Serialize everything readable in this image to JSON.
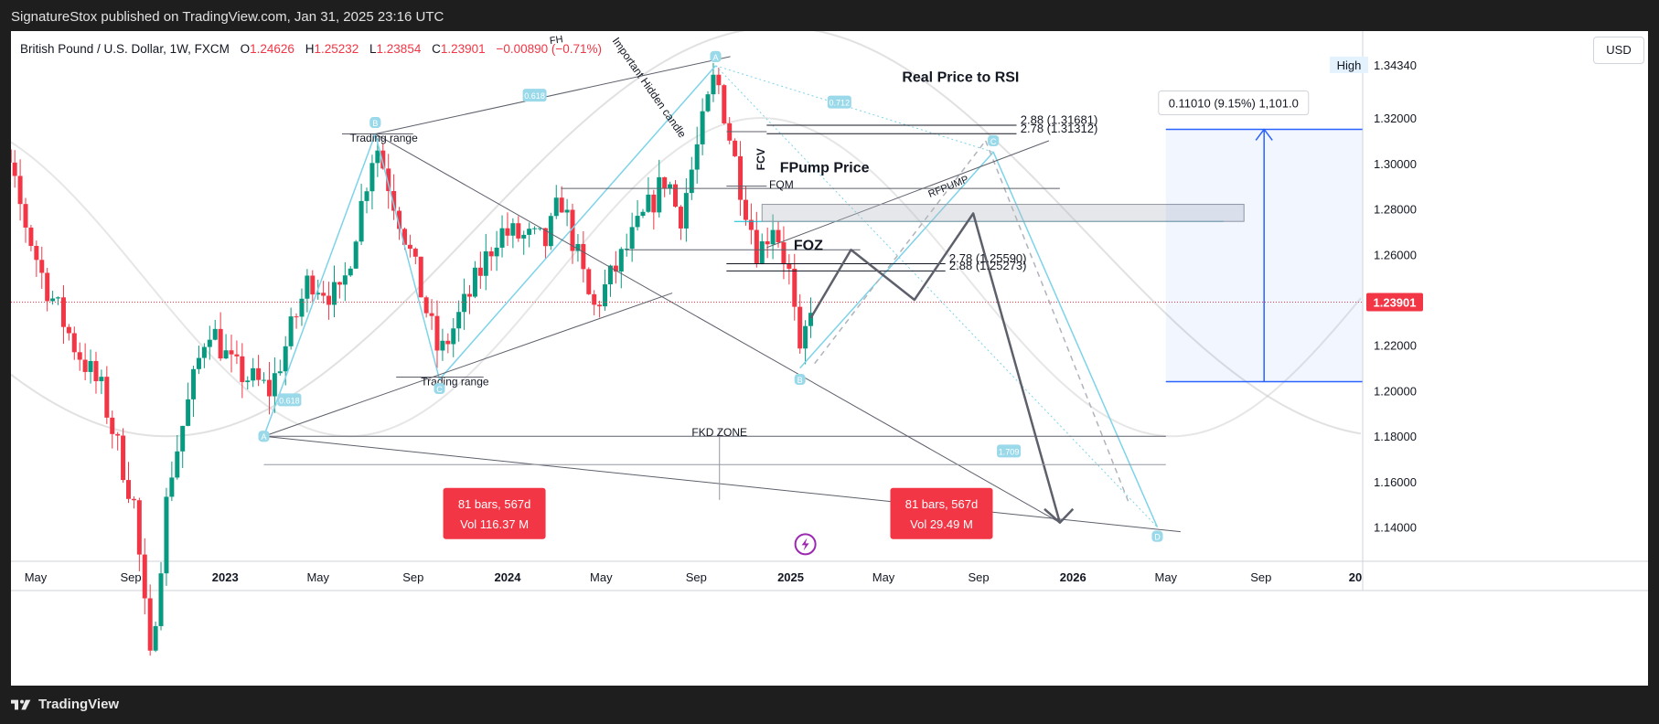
{
  "header": {
    "publisher_line": "SignatureStox published on TradingView.com, Jan 31, 2025 23:16 UTC"
  },
  "legend": {
    "symbol": "British Pound / U.S. Dollar, 1W, FXCM",
    "open_label": "O",
    "open": "1.24626",
    "high_label": "H",
    "high": "1.25232",
    "low_label": "L",
    "low": "1.23854",
    "close_label": "C",
    "close": "1.23901",
    "change": "−0.00890 (−0.71%)"
  },
  "currency_button": "USD",
  "footer": {
    "brand": "TradingView"
  },
  "colors": {
    "up": "#089981",
    "down": "#f23645",
    "cyan": "#7dd3e8",
    "blue": "#2962ff",
    "last_price_bg": "#f23645"
  },
  "chart_data": {
    "type": "candlestick",
    "timeframe": "1W",
    "ylim": [
      1.125,
      1.355
    ],
    "y_ticks": [
      "1.34340",
      "1.32000",
      "1.30000",
      "1.28000",
      "1.26000",
      "1.24000",
      "1.22000",
      "1.20000",
      "1.18000",
      "1.16000",
      "1.14000"
    ],
    "y_tick_values": [
      1.3434,
      1.32,
      1.3,
      1.28,
      1.26,
      1.24,
      1.22,
      1.2,
      1.18,
      1.16,
      1.14
    ],
    "x_ticks": [
      {
        "label": "May",
        "date": "2022-05-01"
      },
      {
        "label": "Sep",
        "date": "2022-09-01"
      },
      {
        "label": "2023",
        "date": "2023-01-01",
        "bold": true
      },
      {
        "label": "May",
        "date": "2023-05-01"
      },
      {
        "label": "Sep",
        "date": "2023-09-01"
      },
      {
        "label": "2024",
        "date": "2024-01-01",
        "bold": true
      },
      {
        "label": "May",
        "date": "2024-05-01"
      },
      {
        "label": "Sep",
        "date": "2024-09-01"
      },
      {
        "label": "2025",
        "date": "2025-01-01",
        "bold": true
      },
      {
        "label": "May",
        "date": "2025-05-01"
      },
      {
        "label": "Sep",
        "date": "2025-09-01"
      },
      {
        "label": "2026",
        "date": "2026-01-01",
        "bold": true
      },
      {
        "label": "May",
        "date": "2026-05-01"
      },
      {
        "label": "Sep",
        "date": "2026-09-01"
      },
      {
        "label": "20",
        "date": "2027-01-01",
        "bold": true
      }
    ],
    "last_price": "1.23901",
    "high_marker": "High",
    "close_path": [
      [
        "2022-02-01",
        1.355
      ],
      [
        "2022-03-15",
        1.31
      ],
      [
        "2022-05-10",
        1.25
      ],
      [
        "2022-06-20",
        1.22
      ],
      [
        "2022-07-25",
        1.2
      ],
      [
        "2022-09-05",
        1.15
      ],
      [
        "2022-09-26",
        1.08
      ],
      [
        "2022-10-20",
        1.16
      ],
      [
        "2022-12-10",
        1.23
      ],
      [
        "2023-01-10",
        1.21
      ],
      [
        "2023-02-28",
        1.2
      ],
      [
        "2023-04-20",
        1.25
      ],
      [
        "2023-05-30",
        1.24
      ],
      [
        "2023-07-14",
        1.31
      ],
      [
        "2023-08-20",
        1.27
      ],
      [
        "2023-10-05",
        1.215
      ],
      [
        "2023-11-10",
        1.24
      ],
      [
        "2023-12-20",
        1.27
      ],
      [
        "2024-02-20",
        1.265
      ],
      [
        "2024-03-10",
        1.285
      ],
      [
        "2024-04-20",
        1.235
      ],
      [
        "2024-06-15",
        1.27
      ],
      [
        "2024-07-25",
        1.295
      ],
      [
        "2024-08-10",
        1.275
      ],
      [
        "2024-09-26",
        1.34
      ],
      [
        "2024-10-25",
        1.295
      ],
      [
        "2024-11-20",
        1.26
      ],
      [
        "2024-12-10",
        1.275
      ],
      [
        "2024-12-31",
        1.25
      ],
      [
        "2025-01-13",
        1.212
      ],
      [
        "2025-01-27",
        1.239
      ]
    ],
    "annotations": {
      "fh": "FH",
      "trading_range_top": "Trading range",
      "trading_range_bottom": "Trading range",
      "hidden_candle": "Important Hidden candle",
      "fcv": "FCV",
      "fqm": "FQM",
      "rfpump": "RFPUMP",
      "fpump_price": "FPump Price",
      "real_price_rsi": "Real Price to RSI",
      "foz": "FOZ",
      "fkd_zone": "FKD ZONE",
      "fib_1": "2.88 (1.31681)",
      "fib_2": "2.78 (1.31312)",
      "fib_3": "2.78 (1.25590)",
      "fib_4": "2.88 (1.25273)",
      "measure": "0.11010 (9.15%) 1,101.0",
      "range_box_1": [
        "81 bars, 567d",
        "Vol 116.37 M"
      ],
      "range_box_2": [
        "81 bars, 567d",
        "Vol 29.49 M"
      ],
      "pattern_points": [
        "A",
        "B",
        "C",
        "D",
        "A",
        "B",
        "C",
        "D",
        "A",
        "B",
        "C",
        "D"
      ],
      "ratio_1": "0.618",
      "ratio_2": "0.618",
      "ratio_3": "0.712",
      "ratio_4": "1.709"
    }
  }
}
